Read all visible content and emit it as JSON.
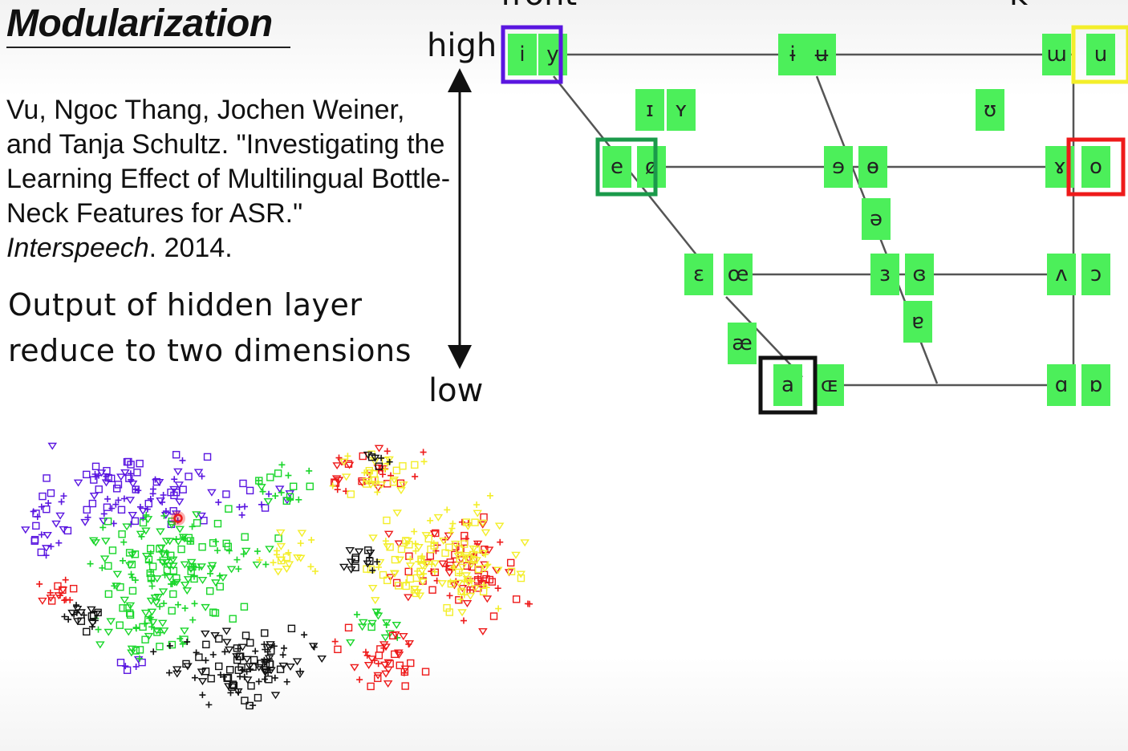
{
  "slide": {
    "title": "Modularization",
    "citation_main": "Vu, Ngoc Thang, Jochen Weiner, and Tanja Schultz. \"Investigating the Learning Effect of Multilingual Bottle-Neck Features for ASR.\" ",
    "citation_venue": "Interspeech",
    "citation_year": ". 2014.",
    "note": "Output of hidden layer reduce to two dimensions"
  },
  "vowel_chart": {
    "axis_high": "high",
    "axis_low": "low",
    "top_left_cut": "front",
    "top_right_cut": "k",
    "colors": {
      "cell": "#4cef5a",
      "line": "#555555",
      "purple": "#5a16e0",
      "dark_green": "#1a9a4a",
      "yellow": "#f3ee2a",
      "red": "#ee1a1a",
      "black": "#111111"
    },
    "vowels": [
      {
        "sym": "i",
        "hl": "purple"
      },
      {
        "sym": "y"
      },
      {
        "sym": "ɨ"
      },
      {
        "sym": "ʉ"
      },
      {
        "sym": "ɯ"
      },
      {
        "sym": "u",
        "hl": "yellow"
      },
      {
        "sym": "ɪ"
      },
      {
        "sym": "ʏ"
      },
      {
        "sym": "ʊ"
      },
      {
        "sym": "e",
        "hl": "dark_green"
      },
      {
        "sym": "ø"
      },
      {
        "sym": "ɘ"
      },
      {
        "sym": "ɵ"
      },
      {
        "sym": "ɤ"
      },
      {
        "sym": "o",
        "hl": "red"
      },
      {
        "sym": "ə"
      },
      {
        "sym": "ɛ"
      },
      {
        "sym": "œ"
      },
      {
        "sym": "ɜ"
      },
      {
        "sym": "ɞ"
      },
      {
        "sym": "ʌ"
      },
      {
        "sym": "ɔ"
      },
      {
        "sym": "ɐ"
      },
      {
        "sym": "æ"
      },
      {
        "sym": "a",
        "hl": "black"
      },
      {
        "sym": "ɶ"
      },
      {
        "sym": "ɑ"
      },
      {
        "sym": "ɒ"
      }
    ]
  },
  "scatter": {
    "marker_types": [
      "square",
      "triangle-down",
      "plus"
    ],
    "colors": [
      "#5a16e0",
      "#19d62a",
      "#ee1a1a",
      "#f3ee2a",
      "#111111"
    ],
    "highlight_color": "#ee1a1a"
  }
}
